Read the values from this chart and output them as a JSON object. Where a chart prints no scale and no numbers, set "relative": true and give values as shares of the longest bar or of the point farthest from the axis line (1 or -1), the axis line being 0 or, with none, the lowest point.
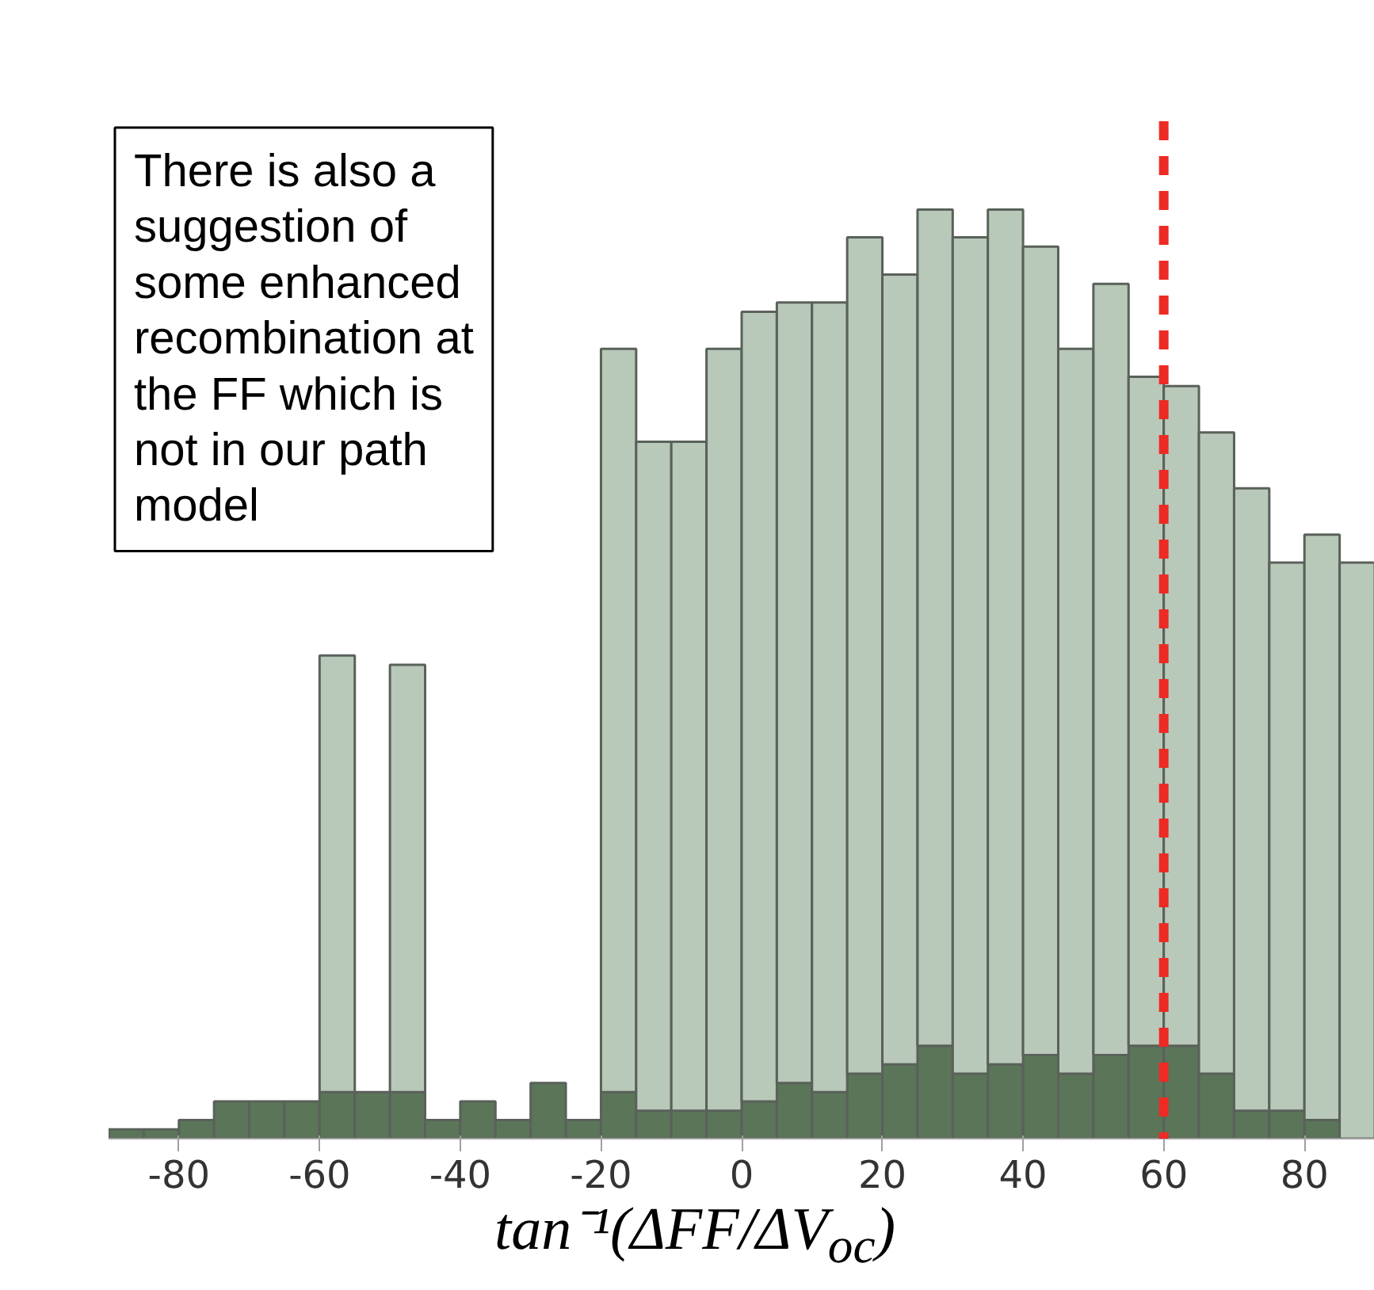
{
  "chart_data": {
    "type": "bar",
    "relative": true,
    "stacked": true,
    "xlabel": "tan⁻¹(ΔFF/ΔV$_{oc}$)",
    "x": [
      -87.5,
      -82.5,
      -77.5,
      -72.5,
      -67.5,
      -62.5,
      -57.5,
      -52.5,
      -47.5,
      -42.5,
      -37.5,
      -32.5,
      -27.5,
      -22.5,
      -17.5,
      -12.5,
      -7.5,
      -2.5,
      2.5,
      7.5,
      12.5,
      17.5,
      22.5,
      27.5,
      32.5,
      37.5,
      42.5,
      47.5,
      52.5,
      57.5,
      62.5,
      67.5,
      72.5,
      77.5,
      82.5,
      87.5
    ],
    "xlim": [
      -90,
      90
    ],
    "xticks": [
      -80,
      -60,
      -40,
      -20,
      0,
      20,
      40,
      60,
      80
    ],
    "grid": false,
    "series": [
      {
        "color": "#5b7559",
        "values": [
          0.01,
          0.01,
          0.02,
          0.04,
          0.04,
          0.04,
          0.05,
          0.05,
          0.05,
          0.02,
          0.04,
          0.02,
          0.06,
          0.02,
          0.05,
          0.03,
          0.03,
          0.03,
          0.04,
          0.06,
          0.05,
          0.07,
          0.08,
          0.1,
          0.07,
          0.08,
          0.09,
          0.07,
          0.09,
          0.1,
          0.1,
          0.07,
          0.03,
          0.03,
          0.02,
          0
        ]
      },
      {
        "color": "#b9c9b9",
        "values": [
          null,
          null,
          null,
          null,
          null,
          null,
          0.47,
          null,
          0.46,
          null,
          null,
          null,
          null,
          null,
          0.8,
          0.72,
          0.72,
          0.82,
          0.85,
          0.84,
          0.85,
          0.9,
          0.85,
          0.9,
          0.9,
          0.92,
          0.87,
          0.78,
          0.83,
          0.72,
          0.71,
          0.69,
          0.67,
          0.59,
          0.63,
          0.62
        ]
      }
    ],
    "ref_lines": [
      {
        "axis": "x",
        "value": 60,
        "color": "#ee2a24",
        "line_style": "dashed"
      }
    ],
    "annotations": [
      "There is also a suggestion of some enhanced recombination at the FF which is not in our path model"
    ]
  }
}
